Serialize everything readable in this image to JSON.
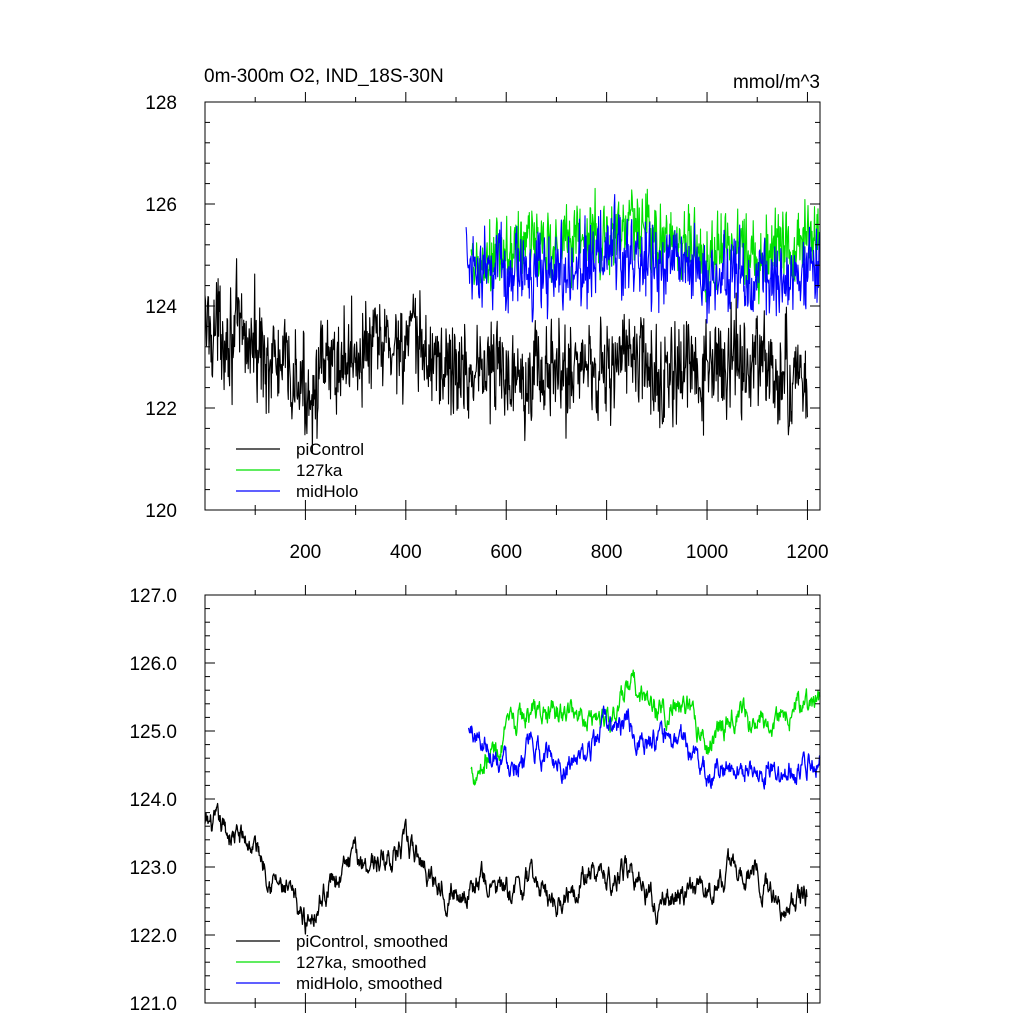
{
  "chart_data": [
    {
      "type": "line",
      "title": "0m-300m O2, IND_18S-30N",
      "units": "mmol/m^3",
      "xlabel": "",
      "ylabel": "",
      "xlim": [
        0,
        1225
      ],
      "ylim": [
        120,
        128
      ],
      "x_ticks": [
        200,
        400,
        600,
        800,
        1000,
        1200
      ],
      "x_tick_labels": [
        "200",
        "400",
        "600",
        "800",
        "1000",
        "1200"
      ],
      "y_ticks": [
        120,
        122,
        124,
        126,
        128
      ],
      "y_tick_labels": [
        "120",
        "122",
        "124",
        "126",
        "128"
      ],
      "legend_position": "bottom-left",
      "series": [
        {
          "name": "piControl",
          "color": "#000000",
          "x_range": [
            0,
            1200
          ],
          "mean": 123.0,
          "amplitude": 0.9,
          "anchors": [
            [
              0,
              123.6
            ],
            [
              50,
              123.5
            ],
            [
              100,
              123.2
            ],
            [
              150,
              122.8
            ],
            [
              200,
              122.3
            ],
            [
              250,
              122.8
            ],
            [
              300,
              123.1
            ],
            [
              350,
              123.2
            ],
            [
              400,
              123.3
            ],
            [
              450,
              123.0
            ],
            [
              500,
              122.7
            ],
            [
              550,
              122.8
            ],
            [
              600,
              122.7
            ],
            [
              650,
              122.8
            ],
            [
              700,
              122.6
            ],
            [
              750,
              122.9
            ],
            [
              800,
              122.8
            ],
            [
              850,
              123.1
            ],
            [
              900,
              122.5
            ],
            [
              950,
              122.7
            ],
            [
              1000,
              122.6
            ],
            [
              1050,
              123.0
            ],
            [
              1100,
              122.9
            ],
            [
              1150,
              122.5
            ],
            [
              1200,
              122.6
            ]
          ]
        },
        {
          "name": "127ka",
          "color": "#00e000",
          "x_range": [
            530,
            1225
          ],
          "mean": 125.3,
          "amplitude": 0.7,
          "anchors": [
            [
              530,
              124.6
            ],
            [
              600,
              125.0
            ],
            [
              650,
              125.3
            ],
            [
              700,
              125.2
            ],
            [
              750,
              125.4
            ],
            [
              800,
              125.3
            ],
            [
              850,
              125.6
            ],
            [
              900,
              125.3
            ],
            [
              950,
              125.3
            ],
            [
              1000,
              124.9
            ],
            [
              1050,
              125.3
            ],
            [
              1100,
              125.0
            ],
            [
              1150,
              125.3
            ],
            [
              1200,
              125.3
            ],
            [
              1225,
              125.3
            ]
          ]
        },
        {
          "name": "midHolo",
          "color": "#0000ff",
          "x_range": [
            520,
            1225
          ],
          "mean": 124.8,
          "amplitude": 0.7,
          "anchors": [
            [
              520,
              125.0
            ],
            [
              600,
              124.6
            ],
            [
              650,
              124.7
            ],
            [
              700,
              124.7
            ],
            [
              750,
              124.6
            ],
            [
              800,
              125.1
            ],
            [
              850,
              125.0
            ],
            [
              900,
              124.8
            ],
            [
              950,
              124.8
            ],
            [
              1000,
              124.5
            ],
            [
              1050,
              124.6
            ],
            [
              1100,
              124.5
            ],
            [
              1150,
              124.5
            ],
            [
              1200,
              124.6
            ],
            [
              1225,
              124.6
            ]
          ]
        }
      ]
    },
    {
      "type": "line",
      "title": "",
      "xlabel": "",
      "ylabel": "",
      "xlim": [
        0,
        1225
      ],
      "ylim": [
        121,
        127
      ],
      "x_ticks": [
        200,
        400,
        600,
        800,
        1000,
        1200
      ],
      "y_ticks": [
        121,
        122,
        123,
        124,
        125,
        126,
        127
      ],
      "y_tick_labels": [
        "121.0",
        "122.0",
        "123.0",
        "124.0",
        "125.0",
        "126.0",
        "127.0"
      ],
      "legend_position": "bottom-left",
      "series": [
        {
          "name": "piControl, smoothed",
          "color": "#000000",
          "x_range": [
            0,
            1200
          ],
          "mean": 122.9,
          "amplitude": 0.45,
          "anchors": [
            [
              0,
              123.6
            ],
            [
              50,
              123.5
            ],
            [
              100,
              123.3
            ],
            [
              150,
              122.7
            ],
            [
              200,
              122.2
            ],
            [
              250,
              122.8
            ],
            [
              300,
              123.1
            ],
            [
              350,
              123.1
            ],
            [
              400,
              123.3
            ],
            [
              450,
              122.9
            ],
            [
              500,
              122.6
            ],
            [
              550,
              122.8
            ],
            [
              600,
              122.6
            ],
            [
              650,
              122.8
            ],
            [
              700,
              122.5
            ],
            [
              750,
              122.9
            ],
            [
              800,
              122.8
            ],
            [
              850,
              123.0
            ],
            [
              900,
              122.4
            ],
            [
              950,
              122.6
            ],
            [
              1000,
              122.6
            ],
            [
              1050,
              123.0
            ],
            [
              1100,
              122.9
            ],
            [
              1150,
              122.4
            ],
            [
              1200,
              122.6
            ]
          ]
        },
        {
          "name": "127ka, smoothed",
          "color": "#00e000",
          "x_range": [
            530,
            1225
          ],
          "mean": 125.3,
          "amplitude": 0.45,
          "anchors": [
            [
              530,
              124.4
            ],
            [
              600,
              124.9
            ],
            [
              650,
              125.3
            ],
            [
              700,
              125.2
            ],
            [
              750,
              125.3
            ],
            [
              800,
              125.2
            ],
            [
              850,
              125.6
            ],
            [
              900,
              125.3
            ],
            [
              950,
              125.4
            ],
            [
              1000,
              124.8
            ],
            [
              1050,
              125.3
            ],
            [
              1100,
              125.0
            ],
            [
              1150,
              125.3
            ],
            [
              1200,
              125.4
            ],
            [
              1225,
              125.4
            ]
          ]
        },
        {
          "name": "midHolo, smoothed",
          "color": "#0000ff",
          "x_range": [
            525,
            1225
          ],
          "mean": 124.7,
          "amplitude": 0.45,
          "anchors": [
            [
              525,
              125.0
            ],
            [
              600,
              124.6
            ],
            [
              650,
              124.7
            ],
            [
              700,
              124.6
            ],
            [
              750,
              124.5
            ],
            [
              800,
              125.1
            ],
            [
              850,
              125.0
            ],
            [
              900,
              124.8
            ],
            [
              950,
              124.8
            ],
            [
              1000,
              124.4
            ],
            [
              1050,
              124.5
            ],
            [
              1100,
              124.4
            ],
            [
              1150,
              124.4
            ],
            [
              1200,
              124.6
            ],
            [
              1225,
              124.7
            ]
          ]
        }
      ]
    }
  ]
}
